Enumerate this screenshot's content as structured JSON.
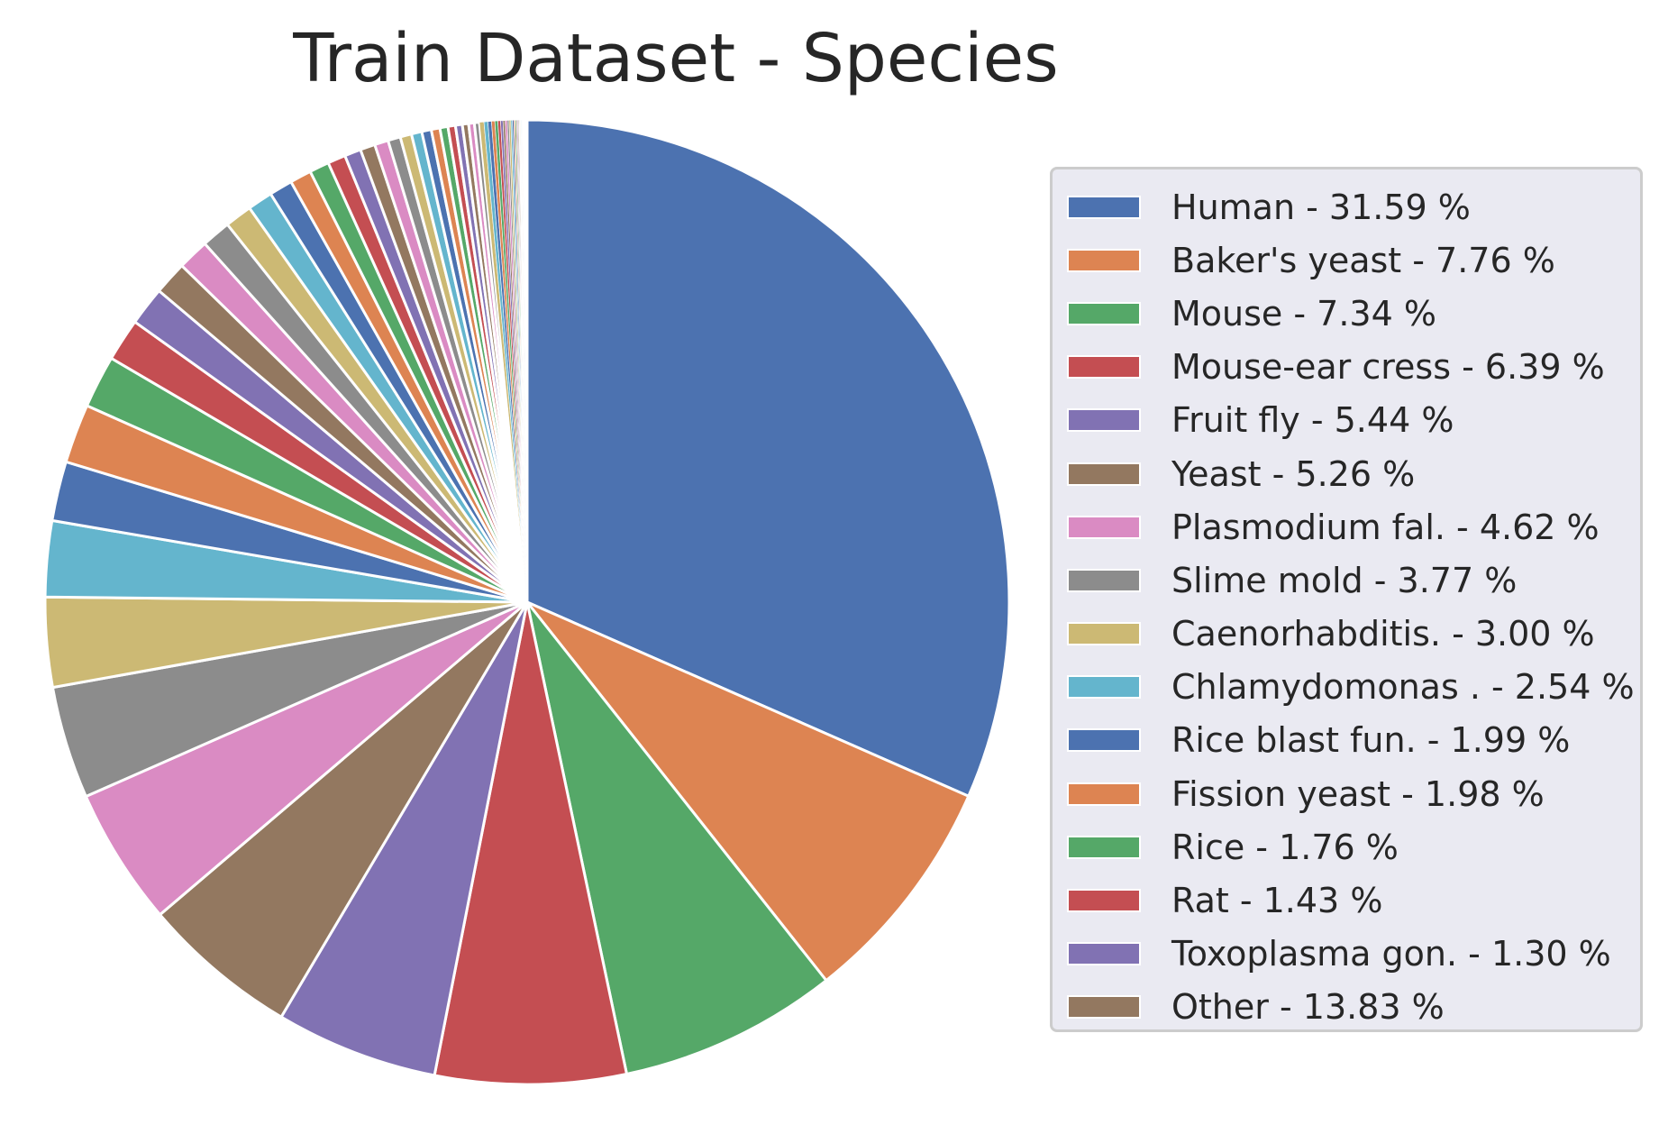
{
  "chart_data": {
    "type": "pie",
    "title": "Train Dataset - Species",
    "start_angle_deg": 90,
    "counterclock": false,
    "slices": [
      {
        "label": "Human - 31.59 %",
        "value": 31.59,
        "color": "#4c72b0"
      },
      {
        "label": "Baker's yeast - 7.76 %",
        "value": 7.76,
        "color": "#dd8452"
      },
      {
        "label": "Mouse - 7.34 %",
        "value": 7.34,
        "color": "#55a868"
      },
      {
        "label": "Mouse-ear cress - 6.39 %",
        "value": 6.39,
        "color": "#c44e52"
      },
      {
        "label": "Fruit fly - 5.44 %",
        "value": 5.44,
        "color": "#8172b3"
      },
      {
        "label": "Yeast - 5.26 %",
        "value": 5.26,
        "color": "#937860"
      },
      {
        "label": "Plasmodium fal. - 4.62 %",
        "value": 4.62,
        "color": "#da8bc3"
      },
      {
        "label": "Slime mold - 3.77 %",
        "value": 3.77,
        "color": "#8c8c8c"
      },
      {
        "label": "Caenorhabditis. - 3.00 %",
        "value": 3.0,
        "color": "#ccb974"
      },
      {
        "label": "Chlamydomonas . - 2.54 %",
        "value": 2.54,
        "color": "#64b5cd"
      },
      {
        "label": "Rice blast fun. - 1.99 %",
        "value": 1.99,
        "color": "#4c72b0"
      },
      {
        "label": "Fission yeast - 1.98 %",
        "value": 1.98,
        "color": "#dd8452"
      },
      {
        "label": "Rice - 1.76 %",
        "value": 1.76,
        "color": "#55a868"
      },
      {
        "label": "Rat - 1.43 %",
        "value": 1.43,
        "color": "#c44e52"
      },
      {
        "label": "Toxoplasma gon. - 1.30 %",
        "value": 1.3,
        "color": "#8172b3"
      },
      {
        "label": "Other - 13.83 %",
        "value": 13.83,
        "color": "#937860"
      }
    ],
    "other_breakdown_values": [
      1.12,
      1.05,
      0.98,
      0.91,
      0.84,
      0.78,
      0.72,
      0.66,
      0.6,
      0.55,
      0.5,
      0.46,
      0.42,
      0.38,
      0.35,
      0.32,
      0.29,
      0.27,
      0.25,
      0.23,
      0.21,
      0.19,
      0.17,
      0.15,
      0.13,
      0.12,
      0.11,
      0.1,
      0.09,
      0.08,
      0.07,
      0.07,
      0.06,
      0.06,
      0.05,
      0.05,
      0.04,
      0.04,
      0.03,
      0.03,
      0.03,
      0.02,
      0.02,
      0.02,
      0.02,
      0.01,
      0.01,
      0.01,
      0.01,
      0.01
    ],
    "legend": {
      "placement": "right"
    }
  }
}
